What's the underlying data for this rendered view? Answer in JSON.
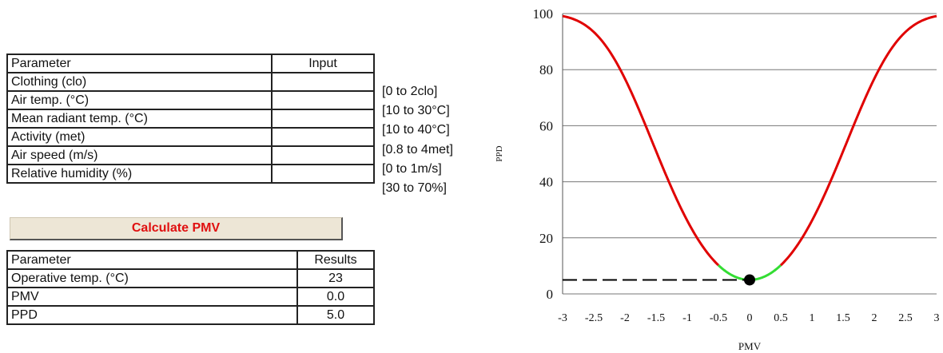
{
  "input_table": {
    "header": {
      "parameter": "Parameter",
      "input": "Input"
    },
    "rows": [
      {
        "label": "Clothing (clo)",
        "value": "",
        "range": "[0 to 2clo]"
      },
      {
        "label": "Air temp. (°C)",
        "value": "",
        "range": "[10 to 30°C]"
      },
      {
        "label": "Mean radiant temp. (°C)",
        "value": "",
        "range": "[10 to 40°C]"
      },
      {
        "label": "Activity (met)",
        "value": "",
        "range": "[0.8 to 4met]"
      },
      {
        "label": "Air speed (m/s)",
        "value": "",
        "range": "[0 to 1m/s]"
      },
      {
        "label": "Relative humidity (%)",
        "value": "",
        "range": "[30 to 70%]"
      }
    ]
  },
  "calculate_button": {
    "label": "Calculate PMV",
    "color": "#e01010"
  },
  "result_table": {
    "header": {
      "parameter": "Parameter",
      "results": "Results"
    },
    "rows": [
      {
        "label": "Operative temp. (°C)",
        "value": "23"
      },
      {
        "label": "PMV",
        "value": "0.0"
      },
      {
        "label": "PPD",
        "value": "5.0"
      }
    ]
  },
  "chart_data": {
    "type": "line",
    "title": "",
    "xlabel": "PMV",
    "ylabel": "PPD",
    "xlim": [
      -3,
      3
    ],
    "ylim": [
      0,
      100
    ],
    "x_ticks": [
      "-3",
      "-2.5",
      "-2",
      "-1.5",
      "-1",
      "-0.5",
      "0",
      "0.5",
      "1",
      "1.5",
      "2",
      "2.5",
      "3"
    ],
    "y_ticks": [
      "0",
      "20",
      "40",
      "60",
      "80",
      "100"
    ],
    "grid": "horizontal",
    "curve": "PPD = 100 - 95*exp(-0.03353*PMV^4 - 0.2179*PMV^2)",
    "series_colors": {
      "outer": "#e00000",
      "comfort_zone": "#33dd33"
    },
    "comfort_zone_pmv": [
      -0.5,
      0.5
    ],
    "current_point": {
      "pmv": 0.0,
      "ppd": 5.0
    }
  }
}
